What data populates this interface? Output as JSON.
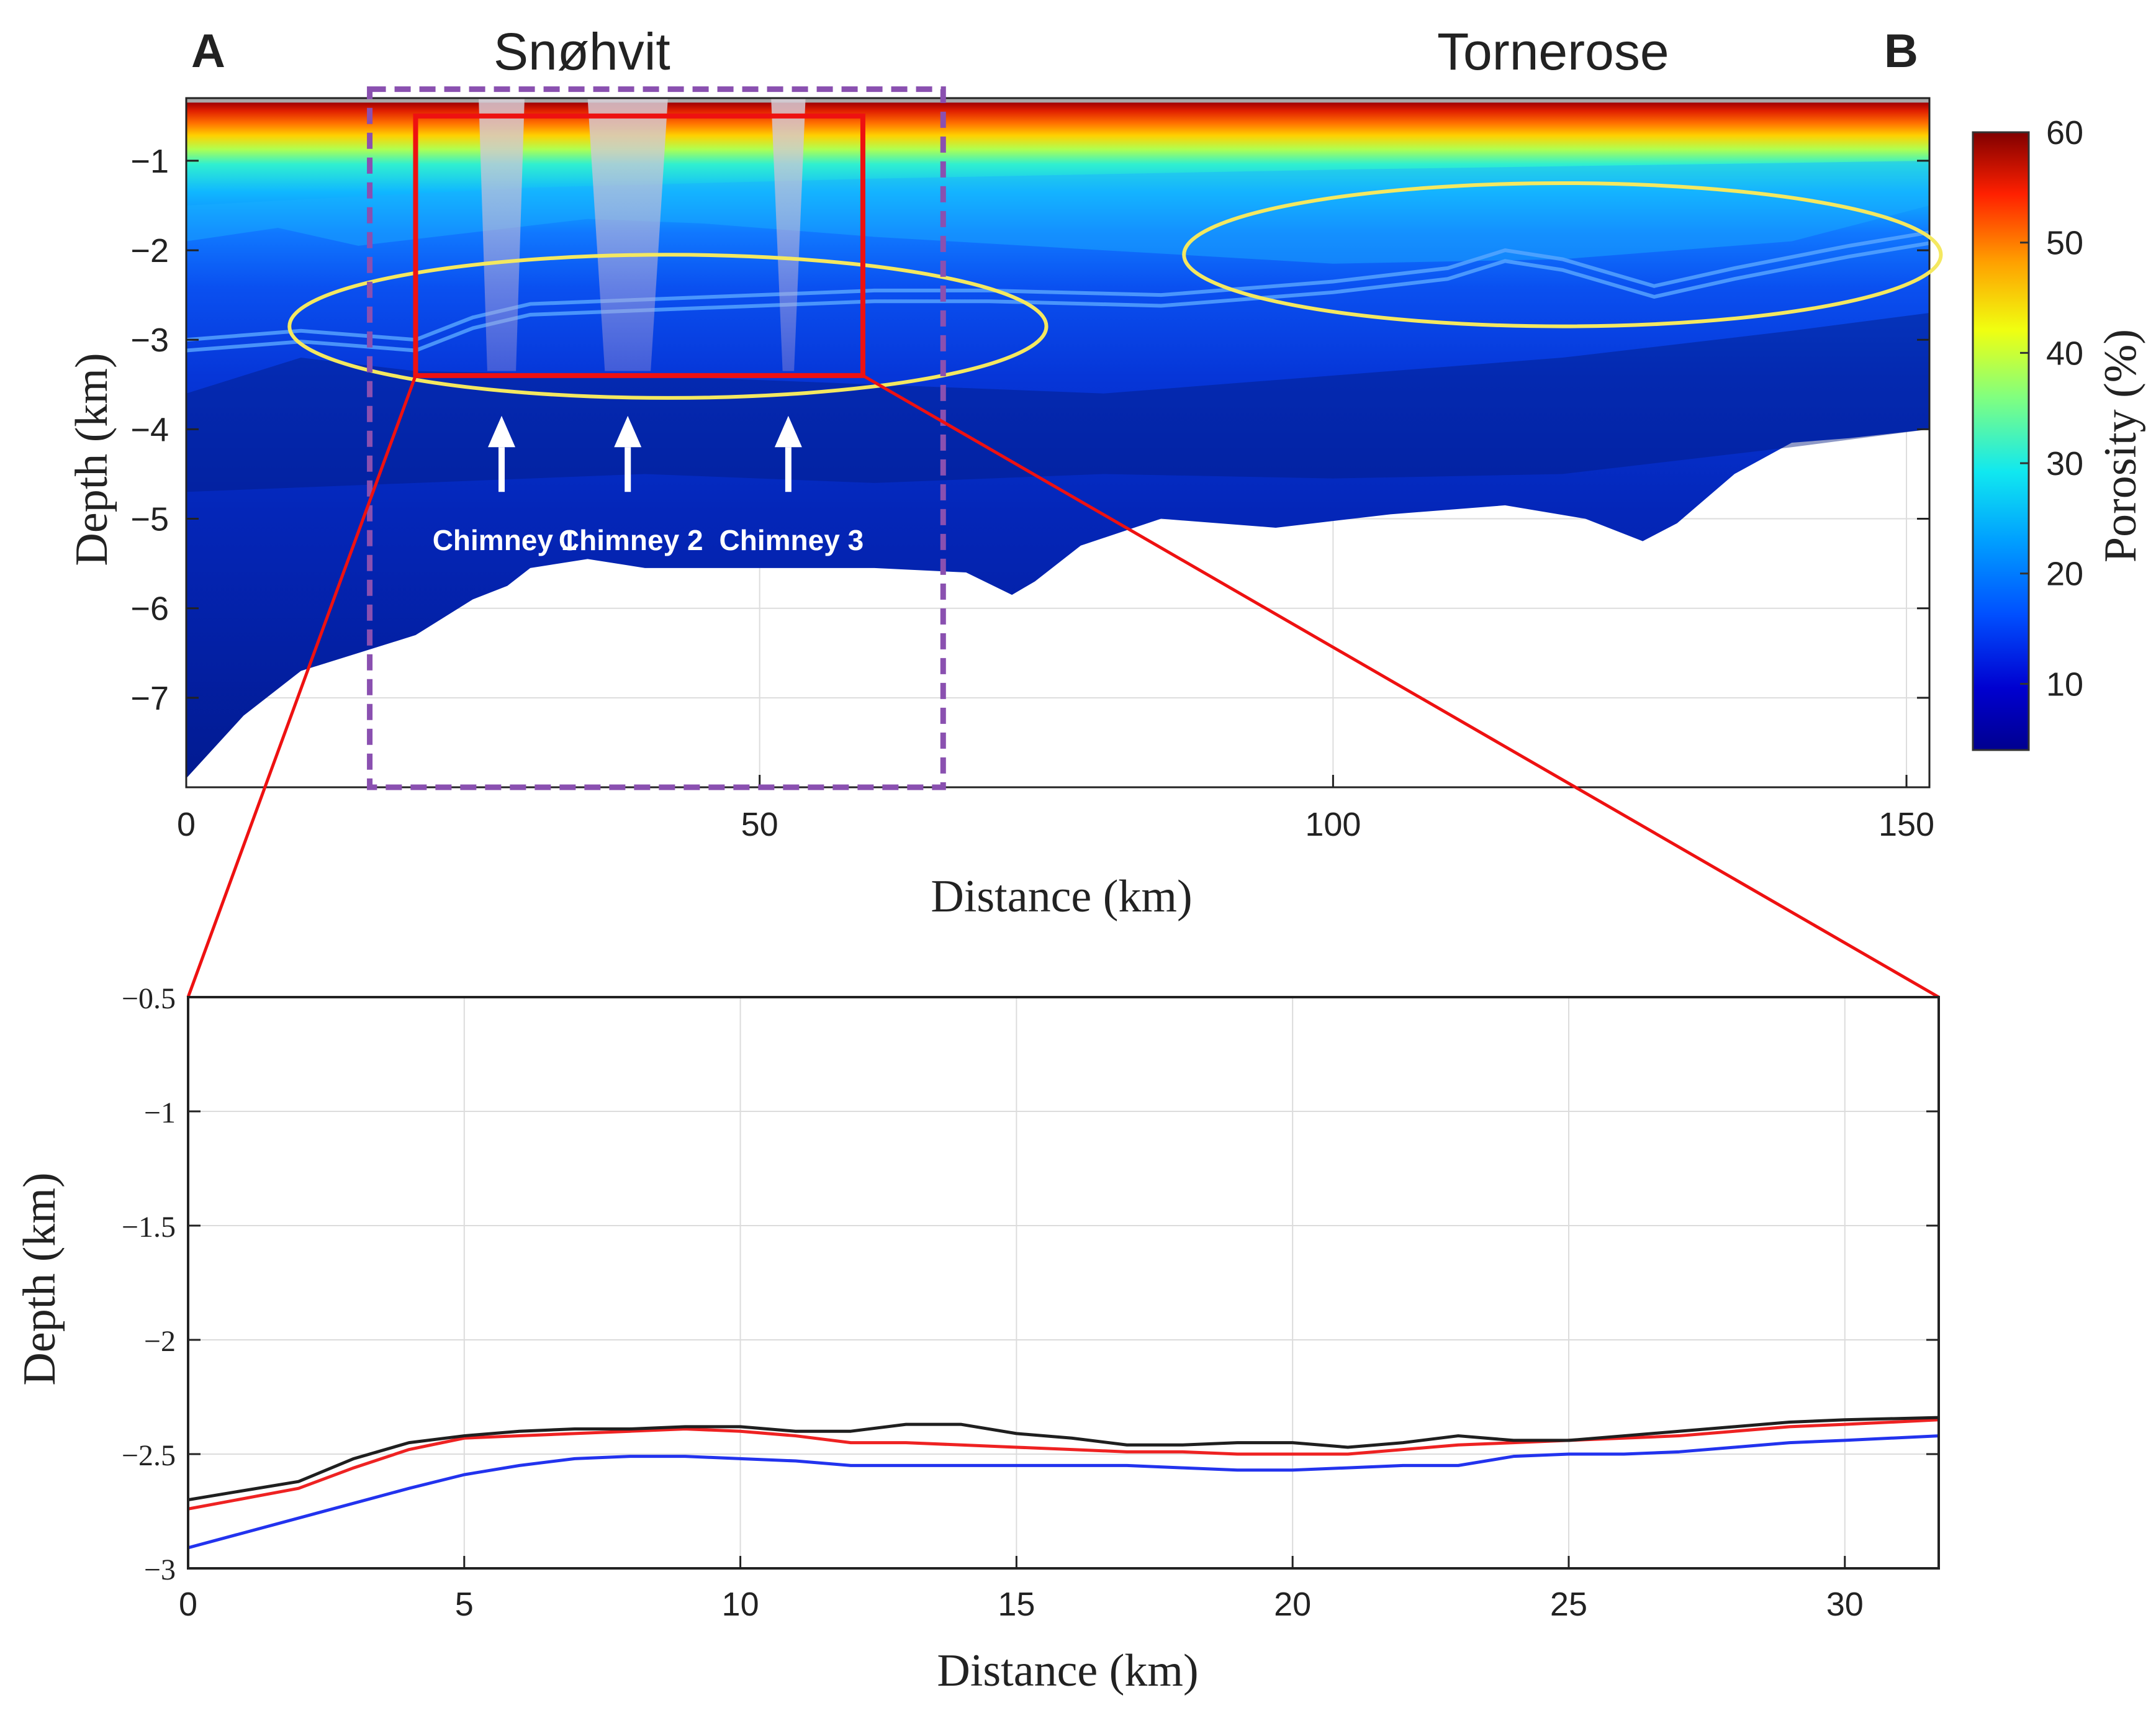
{
  "top_panel": {
    "corner_a": "A",
    "corner_b": "B",
    "site_left": "Snøhvit",
    "site_right": "Tornerose",
    "chimneys": [
      "Chimney 1",
      "Chimney 2",
      "Chimney 3"
    ],
    "chimney_x_km": [
      27.5,
      38.5,
      52.5
    ],
    "colorbar": {
      "label": "Porosity (%)",
      "ticks": [
        "10",
        "20",
        "30",
        "40",
        "50",
        "60"
      ],
      "tick_values": [
        10,
        20,
        30,
        40,
        50,
        60
      ],
      "range": [
        4,
        60
      ],
      "colormap": "jet"
    }
  },
  "chart_data": [
    {
      "type": "heatmap",
      "description_hidden": true,
      "xlabel": "Distance (km)",
      "ylabel": "Depth (km)",
      "xlim": [
        0,
        152
      ],
      "ylim": [
        -8,
        -0.3
      ],
      "xticks": [
        "0",
        "50",
        "100",
        "150"
      ],
      "xtick_values": [
        0,
        50,
        100,
        150
      ],
      "yticks": [
        "−1",
        "−2",
        "−3",
        "−4",
        "−5",
        "−6",
        "−7"
      ],
      "ytick_values": [
        -1,
        -2,
        -3,
        -4,
        -5,
        -6,
        -7
      ],
      "grid": true,
      "seafloor_depth_km": -0.35,
      "basement_profile": {
        "x": [
          0,
          5,
          10,
          20,
          25,
          28,
          30,
          35,
          40,
          45,
          50,
          60,
          68,
          72,
          74,
          78,
          85,
          95,
          105,
          115,
          122,
          127,
          130,
          135,
          140,
          145,
          152
        ],
        "y": [
          -7.9,
          -7.2,
          -6.7,
          -6.3,
          -5.9,
          -5.75,
          -5.55,
          -5.45,
          -5.55,
          -5.55,
          -5.55,
          -5.55,
          -5.6,
          -5.85,
          -5.7,
          -5.3,
          -5.0,
          -5.1,
          -4.95,
          -4.85,
          -5.0,
          -5.25,
          -5.05,
          -4.5,
          -4.15,
          -4.1,
          -4.0
        ]
      },
      "highlight_box_km": {
        "x": [
          20,
          59
        ],
        "y": [
          -3.4,
          -0.5
        ]
      },
      "dashed_box_km": {
        "x": [
          16,
          66
        ],
        "y": [
          -8.0,
          -0.2
        ]
      },
      "ellipses_km": [
        {
          "cx": 42,
          "cy": -2.85,
          "rx": 33,
          "ry": 0.8
        },
        {
          "cx": 120,
          "cy": -2.05,
          "rx": 33,
          "ry": 0.8
        }
      ]
    },
    {
      "type": "line",
      "xlabel": "Distance (km)",
      "ylabel": "Depth (km)",
      "xlim": [
        0,
        31.7
      ],
      "ylim": [
        -3,
        -0.5
      ],
      "xticks": [
        "0",
        "5",
        "10",
        "15",
        "20",
        "25",
        "30"
      ],
      "xtick_values": [
        0,
        5,
        10,
        15,
        20,
        25,
        30
      ],
      "yticks": [
        "−0.5",
        "−1",
        "−1.5",
        "−2",
        "−2.5",
        "−3"
      ],
      "ytick_values": [
        -0.5,
        -1,
        -1.5,
        -2,
        -2.5,
        -3
      ],
      "grid": true,
      "series": [
        {
          "color": "#1f1f1f",
          "x": [
            0,
            2,
            3,
            4,
            5,
            6,
            7,
            8,
            9,
            10,
            11,
            12,
            13,
            14,
            15,
            16,
            17,
            18,
            19,
            20,
            21,
            22,
            23,
            24,
            25,
            26,
            27,
            28,
            29,
            30,
            31.7
          ],
          "y": [
            -2.7,
            -2.62,
            -2.52,
            -2.45,
            -2.42,
            -2.4,
            -2.39,
            -2.39,
            -2.38,
            -2.38,
            -2.4,
            -2.4,
            -2.37,
            -2.37,
            -2.41,
            -2.43,
            -2.46,
            -2.46,
            -2.45,
            -2.45,
            -2.47,
            -2.45,
            -2.42,
            -2.44,
            -2.44,
            -2.42,
            -2.4,
            -2.38,
            -2.36,
            -2.35,
            -2.34
          ]
        },
        {
          "color": "#ee2222",
          "x": [
            0,
            2,
            3,
            4,
            5,
            6,
            7,
            8,
            9,
            10,
            11,
            12,
            13,
            14,
            15,
            16,
            17,
            18,
            19,
            20,
            21,
            22,
            23,
            24,
            25,
            26,
            27,
            28,
            29,
            30,
            31.7
          ],
          "y": [
            -2.74,
            -2.65,
            -2.56,
            -2.48,
            -2.43,
            -2.42,
            -2.41,
            -2.4,
            -2.39,
            -2.4,
            -2.42,
            -2.45,
            -2.45,
            -2.46,
            -2.47,
            -2.48,
            -2.49,
            -2.49,
            -2.5,
            -2.5,
            -2.5,
            -2.48,
            -2.46,
            -2.45,
            -2.44,
            -2.43,
            -2.42,
            -2.4,
            -2.38,
            -2.37,
            -2.35
          ]
        },
        {
          "color": "#2233ee",
          "x": [
            0,
            2,
            4,
            5,
            6,
            7,
            8,
            9,
            10,
            11,
            12,
            13,
            14,
            15,
            16,
            17,
            18,
            19,
            20,
            21,
            22,
            23,
            24,
            25,
            26,
            27,
            28,
            29,
            30,
            31.7
          ],
          "y": [
            -2.91,
            -2.78,
            -2.65,
            -2.59,
            -2.55,
            -2.52,
            -2.51,
            -2.51,
            -2.52,
            -2.53,
            -2.55,
            -2.55,
            -2.55,
            -2.55,
            -2.55,
            -2.55,
            -2.56,
            -2.57,
            -2.57,
            -2.56,
            -2.55,
            -2.55,
            -2.51,
            -2.5,
            -2.5,
            -2.49,
            -2.47,
            -2.45,
            -2.44,
            -2.42
          ]
        }
      ]
    }
  ]
}
